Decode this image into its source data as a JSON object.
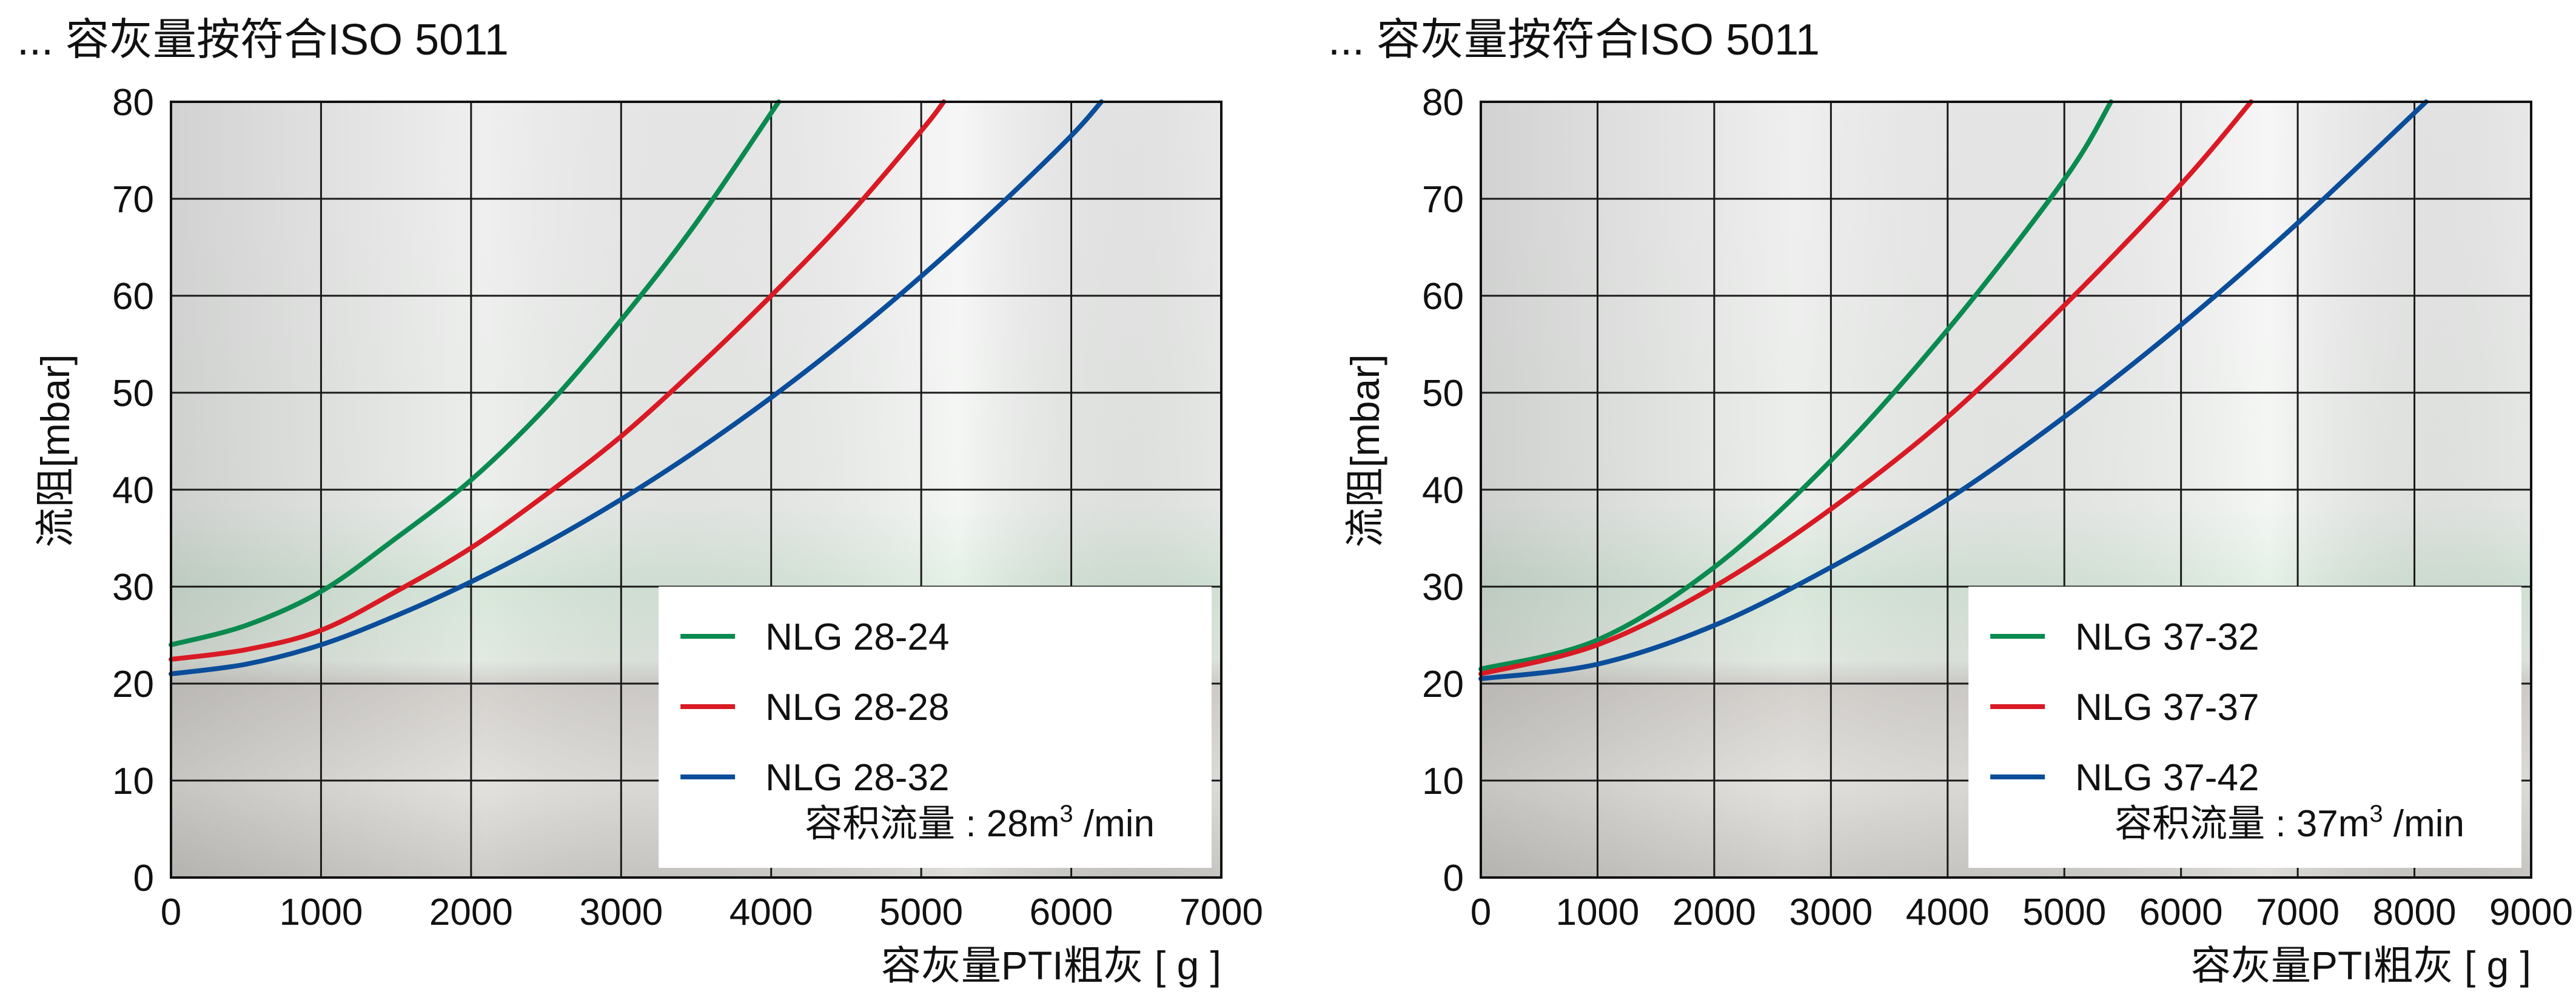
{
  "chart_data": [
    {
      "type": "line",
      "title": "... 容灰量按符合ISO 5011",
      "xlabel": "容灰量PTI粗灰 [ g ]",
      "ylabel": "流阻[mbar]",
      "xlim": [
        0,
        7000
      ],
      "ylim": [
        0,
        80
      ],
      "x_ticks": [
        "0",
        "1000",
        "2000",
        "3000",
        "4000",
        "5000",
        "6000",
        "7000"
      ],
      "y_ticks": [
        "0",
        "10",
        "20",
        "30",
        "40",
        "50",
        "60",
        "70",
        "80"
      ],
      "grid": true,
      "legend_position": "bottom-right",
      "note": {
        "prefix": "容积流量 : 28m",
        "sup": "3",
        "suffix": " /min"
      },
      "series": [
        {
          "name": "NLG 28-24",
          "color": "#0a8a4f",
          "x": [
            0,
            500,
            1000,
            1500,
            2000,
            2500,
            3000,
            3500,
            4050
          ],
          "y": [
            24,
            26,
            29.5,
            35,
            41,
            48.5,
            57.5,
            67.5,
            80
          ]
        },
        {
          "name": "NLG 28-28",
          "color": "#d91a24",
          "x": [
            0,
            500,
            1000,
            1500,
            2000,
            2500,
            3000,
            3500,
            4000,
            4500,
            5000,
            5150
          ],
          "y": [
            22.5,
            23.5,
            25.5,
            29.5,
            34,
            39.5,
            45.5,
            52.5,
            60,
            68,
            77,
            80
          ]
        },
        {
          "name": "NLG 28-32",
          "color": "#0a4d9a",
          "x": [
            0,
            500,
            1000,
            1500,
            2000,
            2500,
            3000,
            3500,
            4000,
            4500,
            5000,
            5500,
            6000,
            6200
          ],
          "y": [
            21,
            22,
            24,
            27,
            30.5,
            34.5,
            39,
            44,
            49.5,
            55.5,
            62,
            69,
            76.5,
            80
          ]
        }
      ]
    },
    {
      "type": "line",
      "title": "... 容灰量按符合ISO 5011",
      "xlabel": "容灰量PTI粗灰 [ g ]",
      "ylabel": "流阻[mbar]",
      "xlim": [
        0,
        9000
      ],
      "ylim": [
        0,
        80
      ],
      "x_ticks": [
        "0",
        "1000",
        "2000",
        "3000",
        "4000",
        "5000",
        "6000",
        "7000",
        "8000",
        "9000"
      ],
      "y_ticks": [
        "0",
        "10",
        "20",
        "30",
        "40",
        "50",
        "60",
        "70",
        "80"
      ],
      "grid": true,
      "legend_position": "bottom-right",
      "note": {
        "prefix": "容积流量 : 37m",
        "sup": "3",
        "suffix": " /min"
      },
      "series": [
        {
          "name": "NLG 37-32",
          "color": "#0a8a4f",
          "x": [
            0,
            1000,
            2000,
            3000,
            4000,
            5000,
            5400
          ],
          "y": [
            21.5,
            24.5,
            32,
            43,
            56.5,
            72,
            80
          ]
        },
        {
          "name": "NLG 37-37",
          "color": "#d91a24",
          "x": [
            0,
            1000,
            2000,
            3000,
            4000,
            5000,
            6000,
            6600
          ],
          "y": [
            21,
            24,
            30,
            38,
            47.5,
            59,
            71.5,
            80
          ]
        },
        {
          "name": "NLG 37-42",
          "color": "#0a4d9a",
          "x": [
            0,
            1000,
            2000,
            3000,
            4000,
            5000,
            6000,
            7000,
            8100
          ],
          "y": [
            20.5,
            22,
            26,
            32,
            39,
            47.5,
            57,
            67.5,
            80
          ]
        }
      ]
    }
  ]
}
